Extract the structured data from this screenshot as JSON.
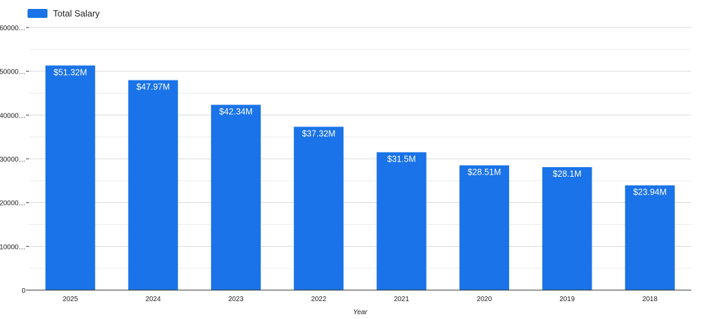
{
  "chart_data": {
    "type": "bar",
    "title": "",
    "xlabel": "Year",
    "ylabel": "",
    "categories": [
      "2025",
      "2024",
      "2023",
      "2022",
      "2021",
      "2020",
      "2019",
      "2018"
    ],
    "series": [
      {
        "name": "Total Salary",
        "values": [
          51320000,
          47970000,
          42340000,
          37320000,
          31500000,
          28510000,
          28100000,
          23940000
        ],
        "data_labels": [
          "$51.32M",
          "$47.97M",
          "$42.34M",
          "$37.32M",
          "$31.5M",
          "$28.51M",
          "$28.1M",
          "$23.94M"
        ],
        "color": "#1a73e8"
      }
    ],
    "y_ticks": [
      0,
      10000,
      20000,
      30000,
      40000,
      50000,
      60000
    ],
    "y_tick_labels": [
      "0",
      "10000…",
      "20000…",
      "30000…",
      "40000…",
      "50000…",
      "60000…"
    ],
    "ylim": [
      0,
      60000000
    ],
    "grid": true,
    "legend_position": "top-left"
  },
  "colors": {
    "bar": "#1a73e8",
    "grid": "#d9d9d9",
    "axis": "#333333",
    "text": "#222222"
  }
}
